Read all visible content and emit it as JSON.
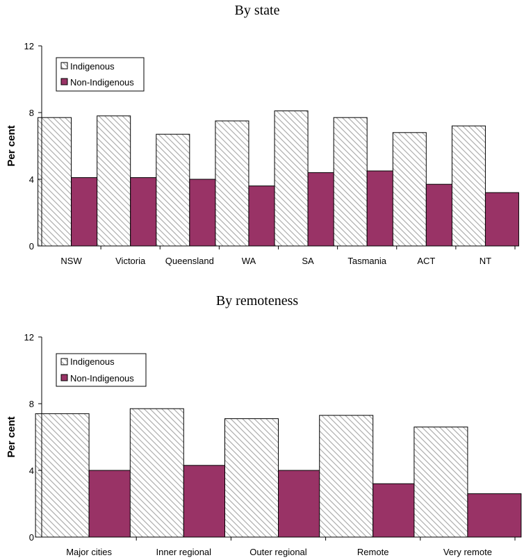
{
  "chart_data": [
    {
      "type": "bar",
      "title": "By state",
      "xlabel": "",
      "ylabel": "Per cent",
      "ylim": [
        0,
        12
      ],
      "yticks": [
        0,
        4,
        8,
        12
      ],
      "grid": false,
      "legend_position": "top-left",
      "categories": [
        "NSW",
        "Victoria",
        "Queensland",
        "WA",
        "SA",
        "Tasmania",
        "ACT",
        "NT"
      ],
      "series": [
        {
          "name": "Indigenous",
          "values": [
            7.7,
            7.8,
            6.7,
            7.5,
            8.1,
            7.7,
            6.8,
            7.2
          ],
          "fill": "#ffffff",
          "pattern": "diagonal-hatch",
          "hatch_color": "#a6a6a6"
        },
        {
          "name": "Non-Indigenous",
          "values": [
            4.1,
            4.1,
            4.0,
            3.6,
            4.4,
            4.5,
            3.7,
            3.2
          ],
          "fill": "#993366"
        }
      ]
    },
    {
      "type": "bar",
      "title": "By remoteness",
      "xlabel": "",
      "ylabel": "Per cent",
      "ylim": [
        0,
        12
      ],
      "yticks": [
        0,
        4,
        8,
        12
      ],
      "grid": false,
      "legend_position": "top-left",
      "categories": [
        "Major cities",
        "Inner regional",
        "Outer regional",
        "Remote",
        "Very remote"
      ],
      "series": [
        {
          "name": "Indigenous",
          "values": [
            7.4,
            7.7,
            7.1,
            7.3,
            6.6
          ],
          "fill": "#ffffff",
          "pattern": "diagonal-hatch",
          "hatch_color": "#a6a6a6"
        },
        {
          "name": "Non-Indigenous",
          "values": [
            4.0,
            4.3,
            4.0,
            3.2,
            2.6
          ],
          "fill": "#993366"
        }
      ]
    }
  ]
}
